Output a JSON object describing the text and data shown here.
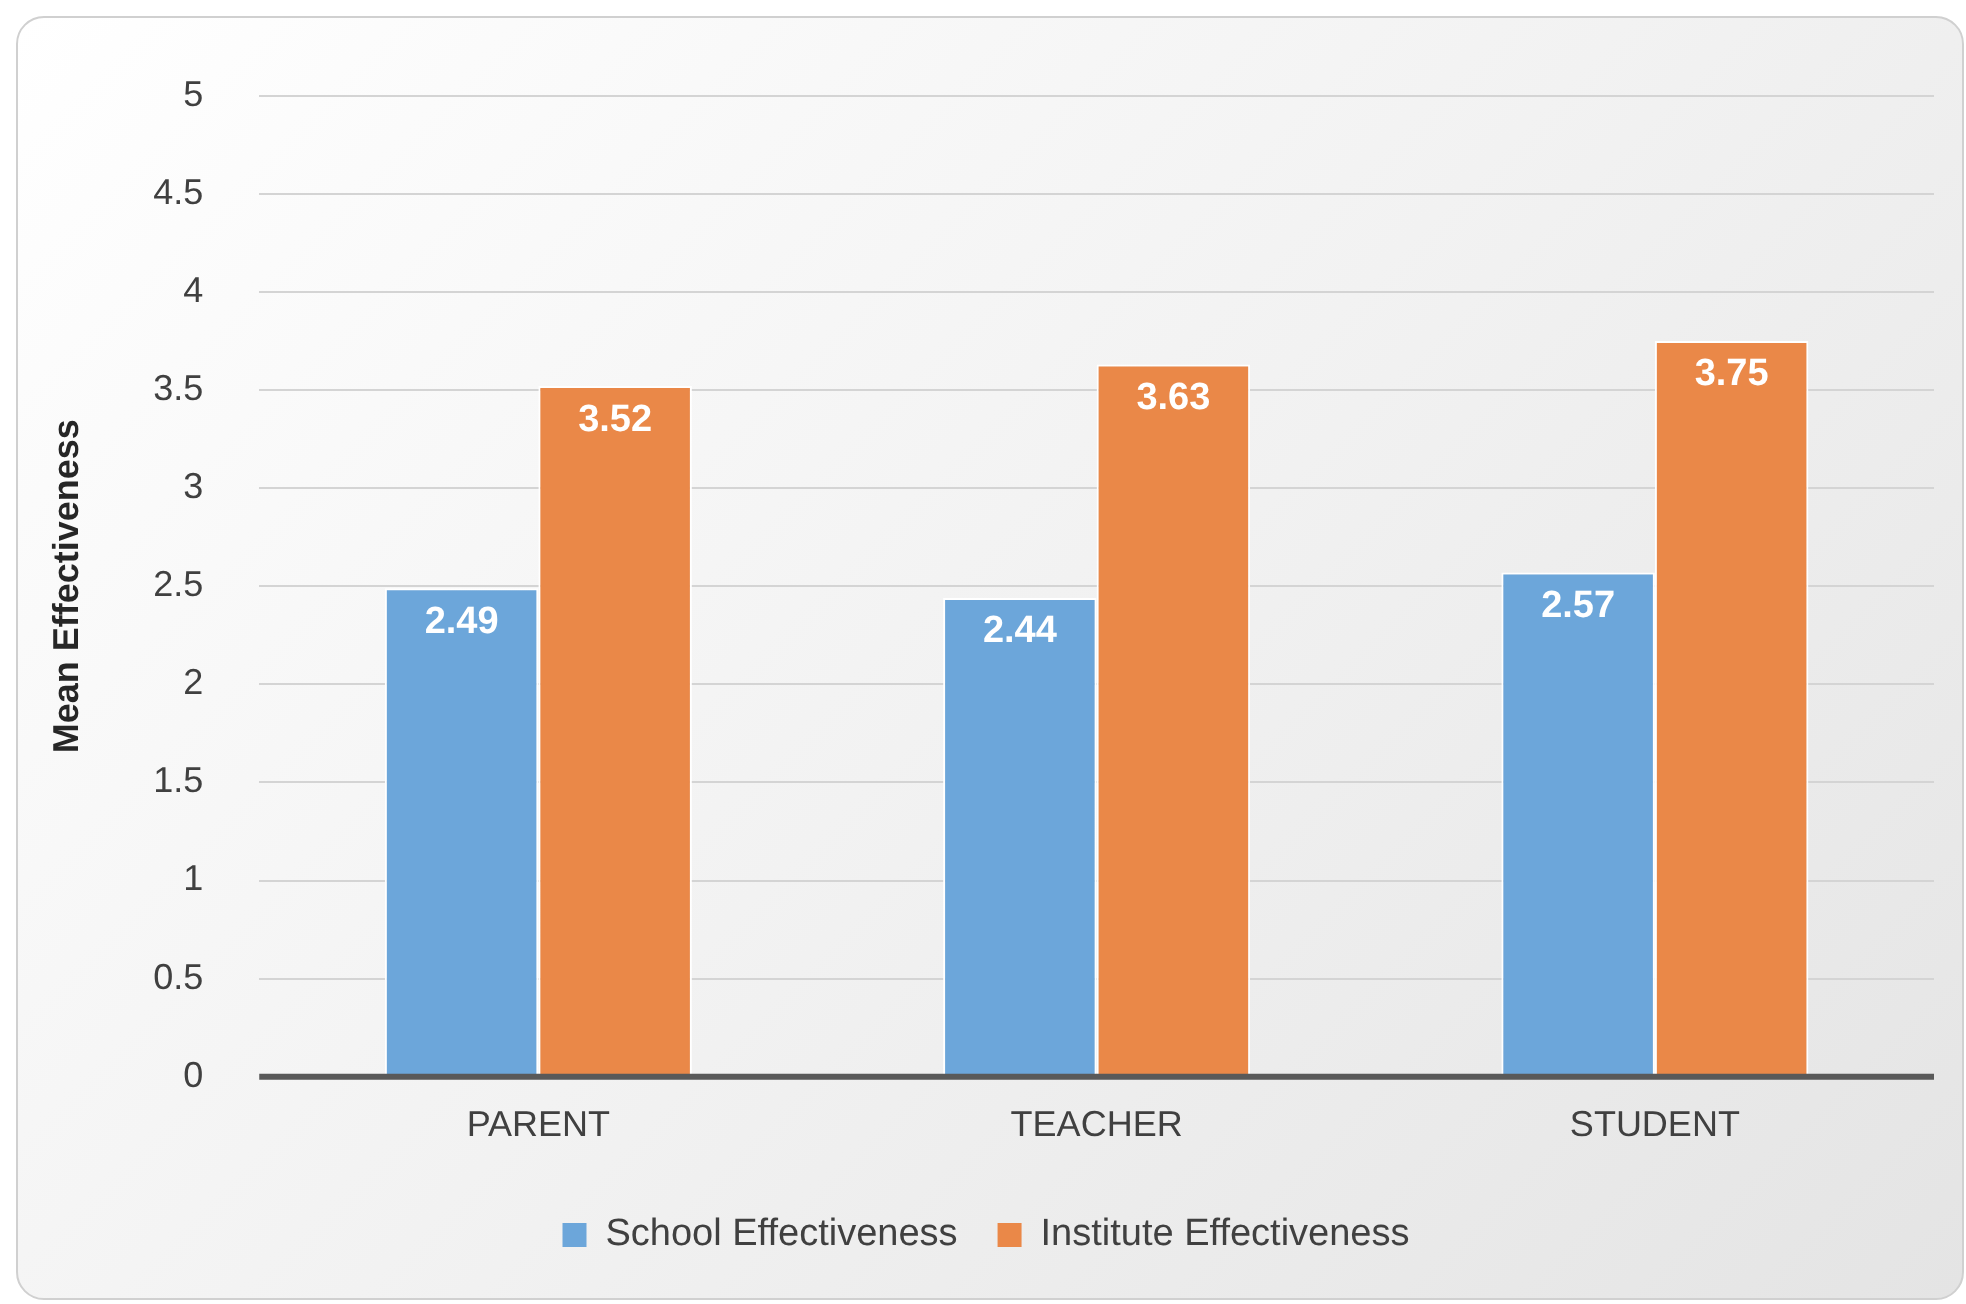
{
  "chart_data": {
    "type": "bar",
    "ylabel": "Mean Effectiveness",
    "categories": [
      "PARENT",
      "TEACHER",
      "STUDENT"
    ],
    "series": [
      {
        "name": "School Effectiveness",
        "color": "#6ca6da",
        "values": [
          2.49,
          2.44,
          2.57
        ]
      },
      {
        "name": "Institute Effectiveness",
        "color": "#ea8848",
        "values": [
          3.52,
          3.63,
          3.75
        ]
      }
    ],
    "ylim": [
      0,
      5
    ],
    "yticks": [
      0,
      0.5,
      1,
      1.5,
      2,
      2.5,
      3,
      3.5,
      4,
      4.5,
      5
    ],
    "grid": "y",
    "legend": "bottom",
    "data_labels": true
  }
}
